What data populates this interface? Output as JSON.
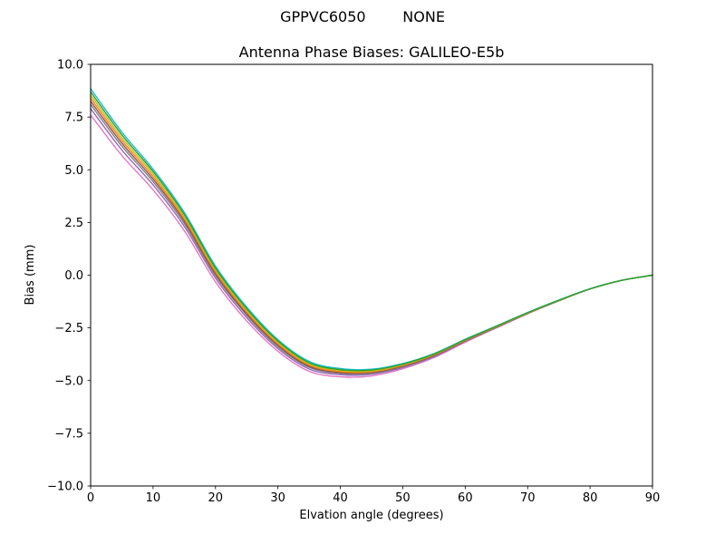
{
  "chart_data": {
    "type": "line",
    "suptitle": "GPPVC6050        NONE",
    "title": "Antenna Phase Biases: GALILEO-E5b",
    "xlabel": "Elvation angle (degrees)",
    "ylabel": "Bias (mm)",
    "xlim": [
      0,
      90
    ],
    "ylim": [
      -10,
      10
    ],
    "grid": false,
    "legend": false,
    "background": "#ffffff",
    "axis_color": "#000000",
    "xticks": [
      0,
      10,
      20,
      30,
      40,
      50,
      60,
      70,
      80,
      90
    ],
    "xtick_labels": [
      "0",
      "10",
      "20",
      "30",
      "40",
      "50",
      "60",
      "70",
      "80",
      "90"
    ],
    "yticks": [
      10.0,
      7.5,
      5.0,
      2.5,
      0.0,
      -2.5,
      -5.0,
      -7.5,
      -10.0
    ],
    "ytick_labels": [
      "10.0",
      "7.5",
      "5.0",
      "2.5",
      "0.0",
      "−2.5",
      "−5.0",
      "−7.5",
      "−10.0"
    ],
    "x": [
      0,
      5,
      10,
      15,
      20,
      25,
      30,
      35,
      40,
      45,
      50,
      55,
      60,
      65,
      70,
      75,
      80,
      85,
      90
    ],
    "series": [
      {
        "name": "line-1",
        "color": "#e377c2",
        "values": [
          7.6,
          5.68,
          4.05,
          2.11,
          -0.32,
          -2.17,
          -3.61,
          -4.56,
          -4.82,
          -4.78,
          -4.44,
          -3.91,
          -3.18,
          -2.5,
          -1.83,
          -1.22,
          -0.66,
          -0.25,
          0.0
        ]
      },
      {
        "name": "line-2",
        "color": "#9467bd",
        "values": [
          7.9,
          5.94,
          4.28,
          2.32,
          -0.14,
          -2.01,
          -3.48,
          -4.45,
          -4.72,
          -4.7,
          -4.38,
          -3.86,
          -3.14,
          -2.48,
          -1.82,
          -1.21,
          -0.65,
          -0.25,
          0.0
        ]
      },
      {
        "name": "line-3",
        "color": "#7f7f7f",
        "values": [
          8.1,
          6.12,
          4.44,
          2.46,
          -0.02,
          -1.9,
          -3.39,
          -4.37,
          -4.66,
          -4.65,
          -4.34,
          -3.83,
          -3.12,
          -2.47,
          -1.81,
          -1.21,
          -0.65,
          -0.25,
          0.0
        ]
      },
      {
        "name": "line-4",
        "color": "#8c564b",
        "values": [
          8.25,
          6.26,
          4.56,
          2.57,
          0.07,
          -1.83,
          -3.32,
          -4.32,
          -4.62,
          -4.61,
          -4.31,
          -3.81,
          -3.11,
          -2.45,
          -1.8,
          -1.2,
          -0.65,
          -0.25,
          0.0
        ]
      },
      {
        "name": "line-5",
        "color": "#ff7f0e",
        "values": [
          8.4,
          6.39,
          4.68,
          2.67,
          0.16,
          -1.75,
          -3.26,
          -4.26,
          -4.57,
          -4.58,
          -4.28,
          -3.78,
          -3.09,
          -2.44,
          -1.8,
          -1.2,
          -0.65,
          -0.25,
          0.0
        ]
      },
      {
        "name": "line-6",
        "color": "#bcbd22",
        "values": [
          8.55,
          6.52,
          4.8,
          2.77,
          0.25,
          -1.67,
          -3.19,
          -4.21,
          -4.52,
          -4.54,
          -4.25,
          -3.76,
          -3.07,
          -2.43,
          -1.79,
          -1.19,
          -0.65,
          -0.25,
          0.0
        ]
      },
      {
        "name": "line-7",
        "color": "#17becf",
        "values": [
          8.85,
          6.79,
          5.03,
          2.98,
          0.43,
          -1.51,
          -3.06,
          -4.09,
          -4.43,
          -4.46,
          -4.19,
          -3.72,
          -3.04,
          -2.41,
          -1.77,
          -1.18,
          -0.64,
          -0.25,
          0.0
        ]
      },
      {
        "name": "line-8",
        "color": "#2ca02c",
        "values": [
          8.7,
          6.66,
          4.92,
          2.88,
          0.34,
          -1.59,
          -3.12,
          -4.15,
          -4.48,
          -4.5,
          -4.22,
          -3.74,
          -3.06,
          -2.42,
          -1.78,
          -1.19,
          -0.65,
          -0.25,
          0.0
        ]
      }
    ]
  }
}
